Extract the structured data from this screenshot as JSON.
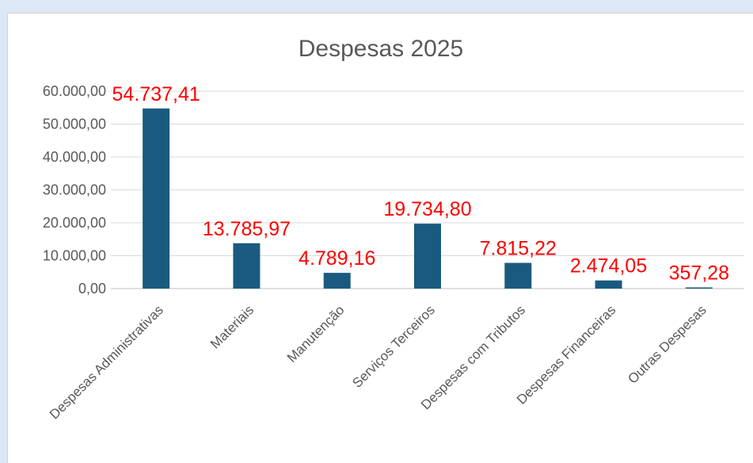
{
  "chart_data": {
    "type": "bar",
    "title": "Despesas 2025",
    "categories": [
      "Despesas Administrativas",
      "Materiais",
      "Manutenção",
      "Serviços Terceiros",
      "Despesas com Tributos",
      "Despesas Financeiras",
      "Outras Despesas"
    ],
    "values": [
      54737.41,
      13785.97,
      4789.16,
      19734.8,
      7815.22,
      2474.05,
      357.28
    ],
    "data_labels": [
      "54.737,41",
      "13.785,97",
      "4.789,16",
      "19.734,80",
      "7.815,22",
      "2.474,05",
      "357,28"
    ],
    "y_ticks": [
      "0,00",
      "10.000,00",
      "20.000,00",
      "30.000,00",
      "40.000,00",
      "50.000,00",
      "60.000,00"
    ],
    "ylim": [
      0,
      60000
    ],
    "grid": true,
    "legend": "none",
    "bar_color": "#1a5a80",
    "label_color": "#ff0000"
  }
}
